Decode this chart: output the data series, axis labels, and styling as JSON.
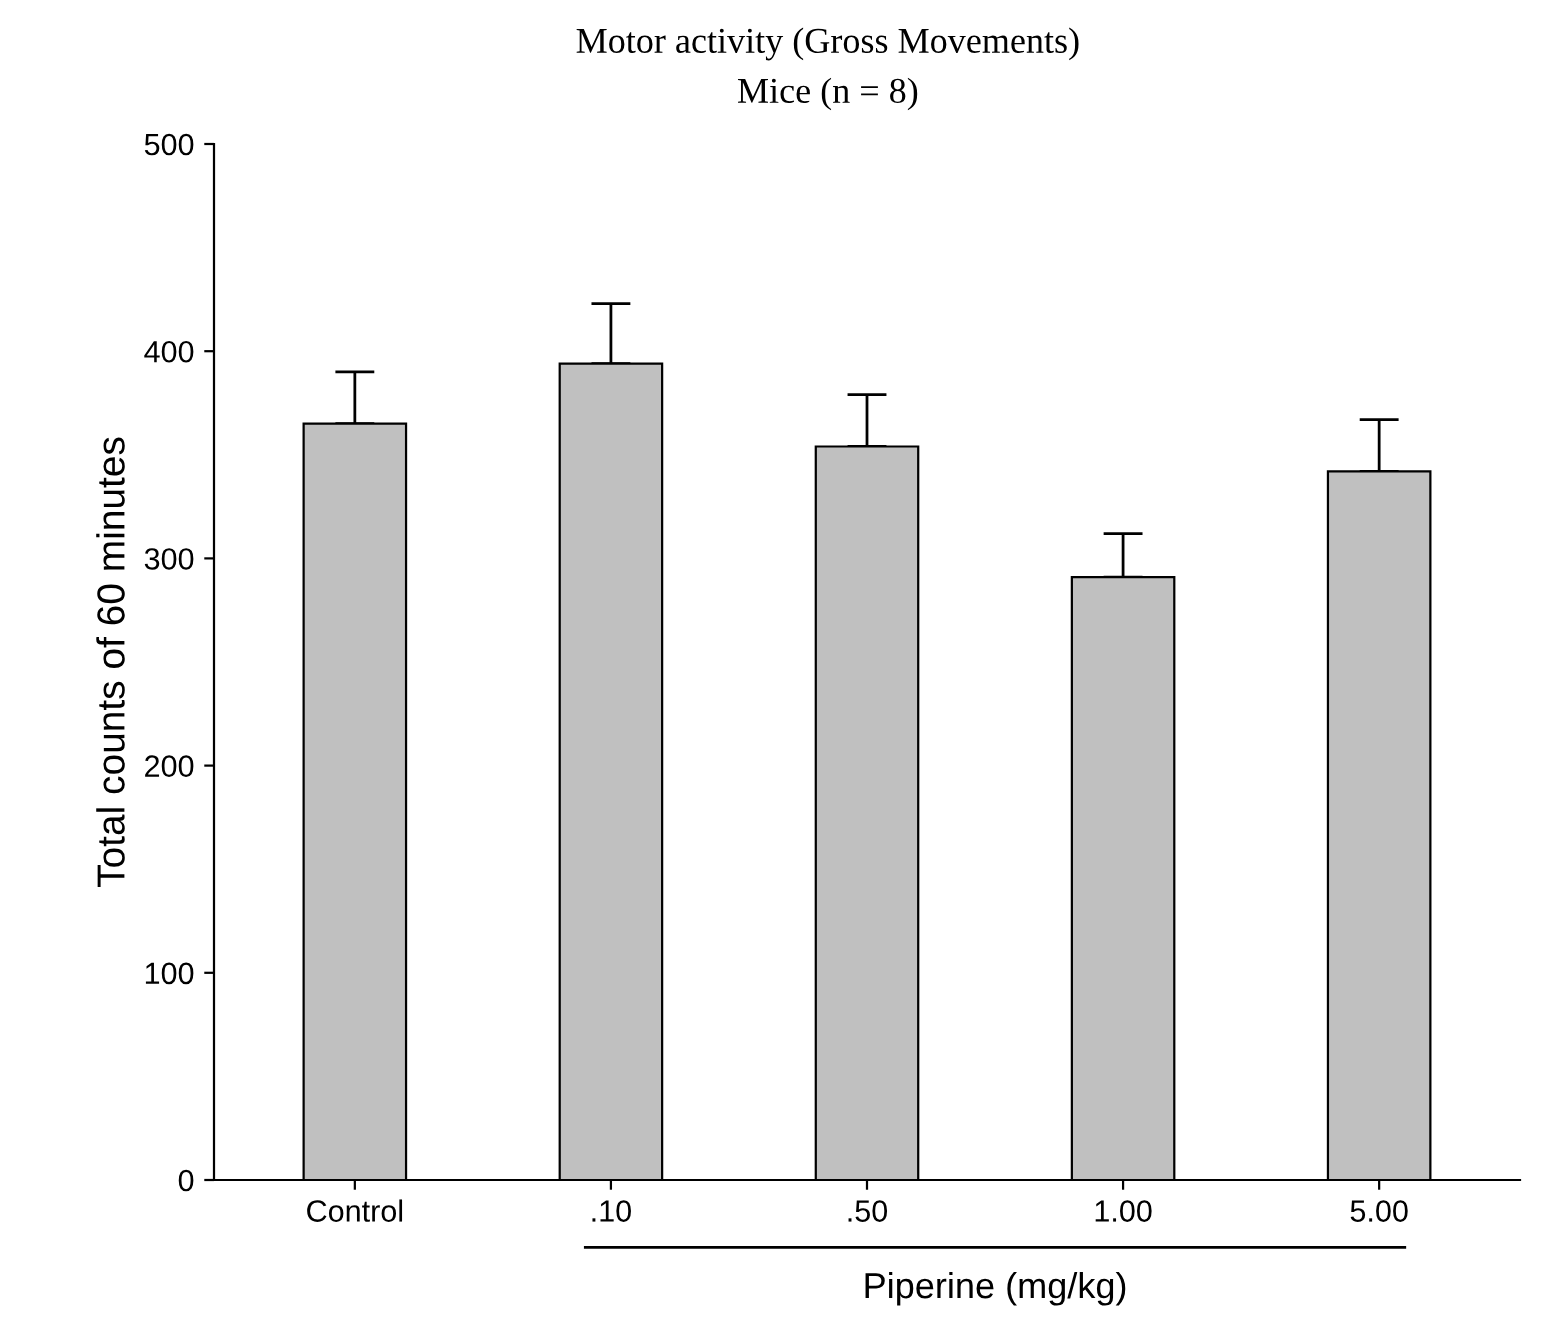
{
  "chart_data": {
    "type": "bar",
    "title": "Motor activity (Gross Movements)",
    "subtitle": "Mice (n = 8)",
    "ylabel": "Total counts of 60 minutes",
    "xlabel": "Piperine (mg/kg)",
    "categories": [
      "Control",
      ".10",
      ".50",
      "1.00",
      "5.00"
    ],
    "values": [
      365,
      394,
      354,
      291,
      342
    ],
    "errors": [
      [
        365,
        390
      ],
      [
        394,
        423
      ],
      [
        354,
        379
      ],
      [
        291,
        312
      ],
      [
        342,
        367
      ]
    ],
    "color": "#c0c0c0",
    "ylim": [
      0,
      500
    ],
    "yticks": [
      0,
      100,
      200,
      300,
      400,
      500
    ],
    "grid": false,
    "legend": false
  }
}
